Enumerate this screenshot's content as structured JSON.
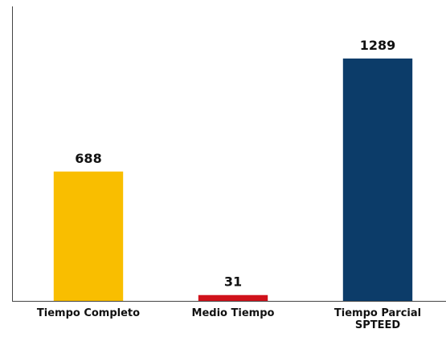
{
  "chart_data": {
    "type": "bar",
    "categories": [
      "Tiempo Completo",
      "Medio Tiempo",
      "Tiempo Parcial SPTEED"
    ],
    "values": [
      688,
      31,
      1289
    ],
    "colors": [
      "#f9be00",
      "#d0121b",
      "#0c3c69"
    ],
    "ylim": [
      0,
      1566
    ]
  }
}
